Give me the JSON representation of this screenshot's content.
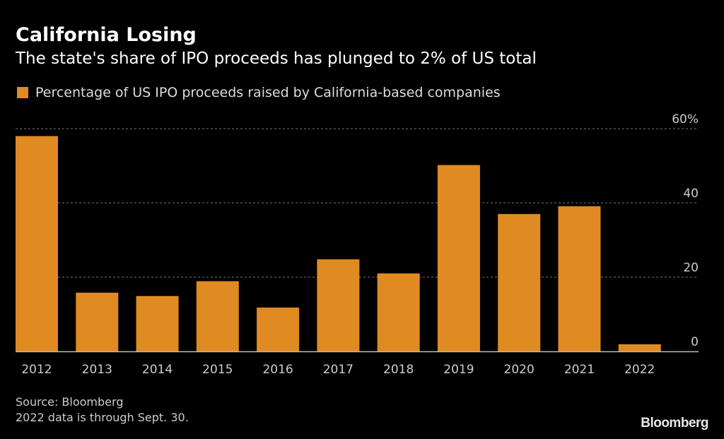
{
  "header": {
    "title": "California Losing",
    "subtitle": "The state's share of IPO proceeds has plunged to 2% of US total"
  },
  "footer": {
    "source": "Source: Bloomberg",
    "note": "2022 data is through Sept. 30.",
    "brand": "Bloomberg"
  },
  "colors": {
    "bar": "#e08a22",
    "background": "#000000",
    "gridline": "#777777",
    "axis": "#bbbbbb"
  },
  "chart_data": {
    "type": "bar",
    "title": "California Losing",
    "subtitle": "The state's share of IPO proceeds has plunged to 2% of US total",
    "xlabel": "",
    "ylabel": "",
    "categories": [
      "2012",
      "2013",
      "2014",
      "2015",
      "2016",
      "2017",
      "2018",
      "2019",
      "2020",
      "2021",
      "2022"
    ],
    "series": [
      {
        "name": "Percentage of US IPO proceeds raised by California-based companies",
        "values": [
          58,
          15.8,
          14.9,
          18.9,
          11.8,
          24.8,
          21,
          50.2,
          37,
          39.1,
          1.9
        ]
      }
    ],
    "ylim": [
      0,
      60
    ],
    "yticks": [
      0,
      20,
      40,
      60
    ],
    "ytick_labels": [
      "0",
      "20",
      "40",
      "60%"
    ],
    "grid": true,
    "y_axis_side": "right",
    "legend_position": "top-left"
  }
}
